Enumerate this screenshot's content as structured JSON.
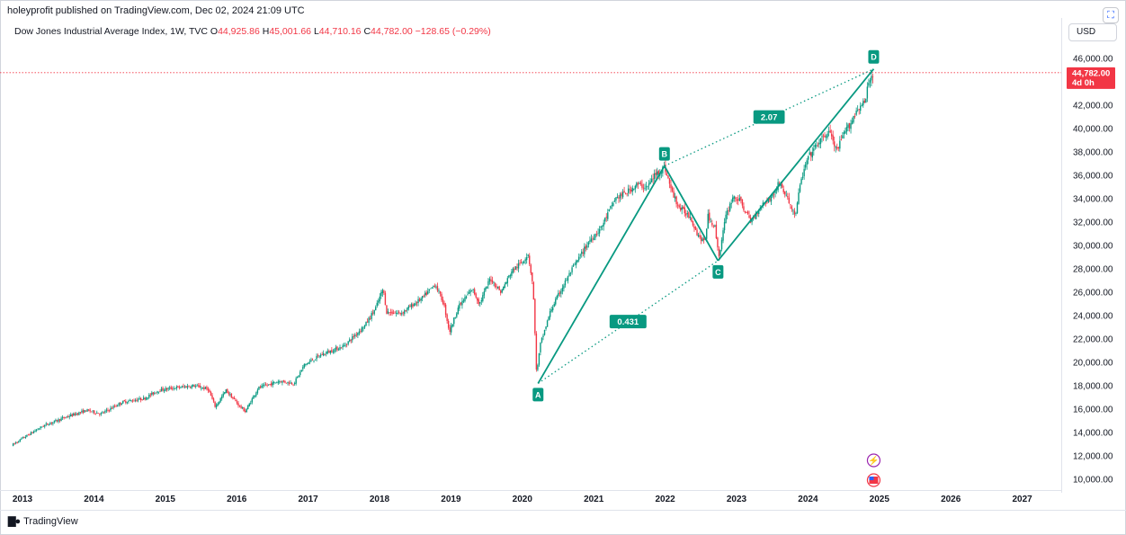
{
  "header": {
    "publisher": "holeyprofit published on TradingView.com, Dec 02, 2024 21:09 UTC",
    "fullscreen_icon": "fullscreen-icon"
  },
  "legend": {
    "symbol": "Dow Jones Industrial Average Index, 1W, TVC",
    "o_label": "O",
    "o_value": "44,925.86",
    "h_label": "H",
    "h_value": "45,001.66",
    "l_label": "L",
    "l_value": "44,710.16",
    "c_label": "C",
    "c_value": "44,782.00",
    "change": "−128.65 (−0.29%)"
  },
  "currency": "USD",
  "footer": {
    "brand": "TradingView"
  },
  "colors": {
    "up": "#089981",
    "down": "#f23645",
    "pattern": "#089981",
    "price_line": "#f23645"
  },
  "chart_data": {
    "type": "candlestick",
    "symbol": "Dow Jones Industrial Average Index",
    "interval": "1W",
    "y_ticks": [
      "10,000.00",
      "12,000.00",
      "14,000.00",
      "16,000.00",
      "18,000.00",
      "20,000.00",
      "22,000.00",
      "24,000.00",
      "26,000.00",
      "28,000.00",
      "30,000.00",
      "32,000.00",
      "34,000.00",
      "36,000.00",
      "38,000.00",
      "40,000.00",
      "42,000.00",
      "46,000.00"
    ],
    "ylim": [
      9500,
      47000
    ],
    "x_ticks": [
      "2013",
      "2014",
      "2015",
      "2016",
      "2017",
      "2018",
      "2019",
      "2020",
      "2021",
      "2022",
      "2023",
      "2024",
      "2025",
      "2026",
      "2027"
    ],
    "xlim": [
      2012.8,
      2028.0
    ],
    "price_series": [
      [
        2012.85,
        12900
      ],
      [
        2013.0,
        13500
      ],
      [
        2013.3,
        14600
      ],
      [
        2013.6,
        15300
      ],
      [
        2013.9,
        15900
      ],
      [
        2014.1,
        15600
      ],
      [
        2014.4,
        16600
      ],
      [
        2014.7,
        16900
      ],
      [
        2014.9,
        17600
      ],
      [
        2015.1,
        17800
      ],
      [
        2015.4,
        18000
      ],
      [
        2015.6,
        17700
      ],
      [
        2015.7,
        16200
      ],
      [
        2015.85,
        17600
      ],
      [
        2016.05,
        16200
      ],
      [
        2016.12,
        15800
      ],
      [
        2016.3,
        17800
      ],
      [
        2016.6,
        18400
      ],
      [
        2016.8,
        18200
      ],
      [
        2016.95,
        19800
      ],
      [
        2017.2,
        20700
      ],
      [
        2017.5,
        21400
      ],
      [
        2017.8,
        23200
      ],
      [
        2017.95,
        24700
      ],
      [
        2018.05,
        26300
      ],
      [
        2018.1,
        24300
      ],
      [
        2018.3,
        24200
      ],
      [
        2018.6,
        25500
      ],
      [
        2018.78,
        26700
      ],
      [
        2018.9,
        25000
      ],
      [
        2018.98,
        22600
      ],
      [
        2019.1,
        24700
      ],
      [
        2019.3,
        26300
      ],
      [
        2019.4,
        25000
      ],
      [
        2019.55,
        27200
      ],
      [
        2019.7,
        26000
      ],
      [
        2019.85,
        27800
      ],
      [
        2020.0,
        28600
      ],
      [
        2020.08,
        29300
      ],
      [
        2020.15,
        26500
      ],
      [
        2020.2,
        18900
      ],
      [
        2020.25,
        21500
      ],
      [
        2020.4,
        24500
      ],
      [
        2020.55,
        26300
      ],
      [
        2020.7,
        28000
      ],
      [
        2020.85,
        29500
      ],
      [
        2020.95,
        30500
      ],
      [
        2021.1,
        31500
      ],
      [
        2021.3,
        34000
      ],
      [
        2021.45,
        34500
      ],
      [
        2021.6,
        35200
      ],
      [
        2021.75,
        35000
      ],
      [
        2021.85,
        36000
      ],
      [
        2021.99,
        36700
      ],
      [
        2022.1,
        34500
      ],
      [
        2022.2,
        33200
      ],
      [
        2022.35,
        32500
      ],
      [
        2022.45,
        31000
      ],
      [
        2022.55,
        30200
      ],
      [
        2022.6,
        32500
      ],
      [
        2022.7,
        31500
      ],
      [
        2022.75,
        29000
      ],
      [
        2022.85,
        32500
      ],
      [
        2022.95,
        34200
      ],
      [
        2023.05,
        33800
      ],
      [
        2023.2,
        32000
      ],
      [
        2023.35,
        33500
      ],
      [
        2023.5,
        34200
      ],
      [
        2023.6,
        35400
      ],
      [
        2023.75,
        33500
      ],
      [
        2023.82,
        32500
      ],
      [
        2023.9,
        35500
      ],
      [
        2024.0,
        37500
      ],
      [
        2024.15,
        38800
      ],
      [
        2024.3,
        39800
      ],
      [
        2024.4,
        38000
      ],
      [
        2024.5,
        39500
      ],
      [
        2024.6,
        40500
      ],
      [
        2024.7,
        41800
      ],
      [
        2024.8,
        42200
      ],
      [
        2024.85,
        44000
      ],
      [
        2024.92,
        44782
      ]
    ],
    "last_price": "44,782.00",
    "countdown": "4d 0h",
    "pattern": {
      "name": "ABCD",
      "points": [
        {
          "label": "A",
          "x": 2020.22,
          "y": 18200
        },
        {
          "label": "B",
          "x": 2021.99,
          "y": 36800
        },
        {
          "label": "C",
          "x": 2022.74,
          "y": 28700
        },
        {
          "label": "D",
          "x": 2024.92,
          "y": 45100
        }
      ],
      "ratios": [
        {
          "label": "0.431",
          "between": "A-C"
        },
        {
          "label": "2.07",
          "between": "B-D"
        }
      ]
    }
  }
}
